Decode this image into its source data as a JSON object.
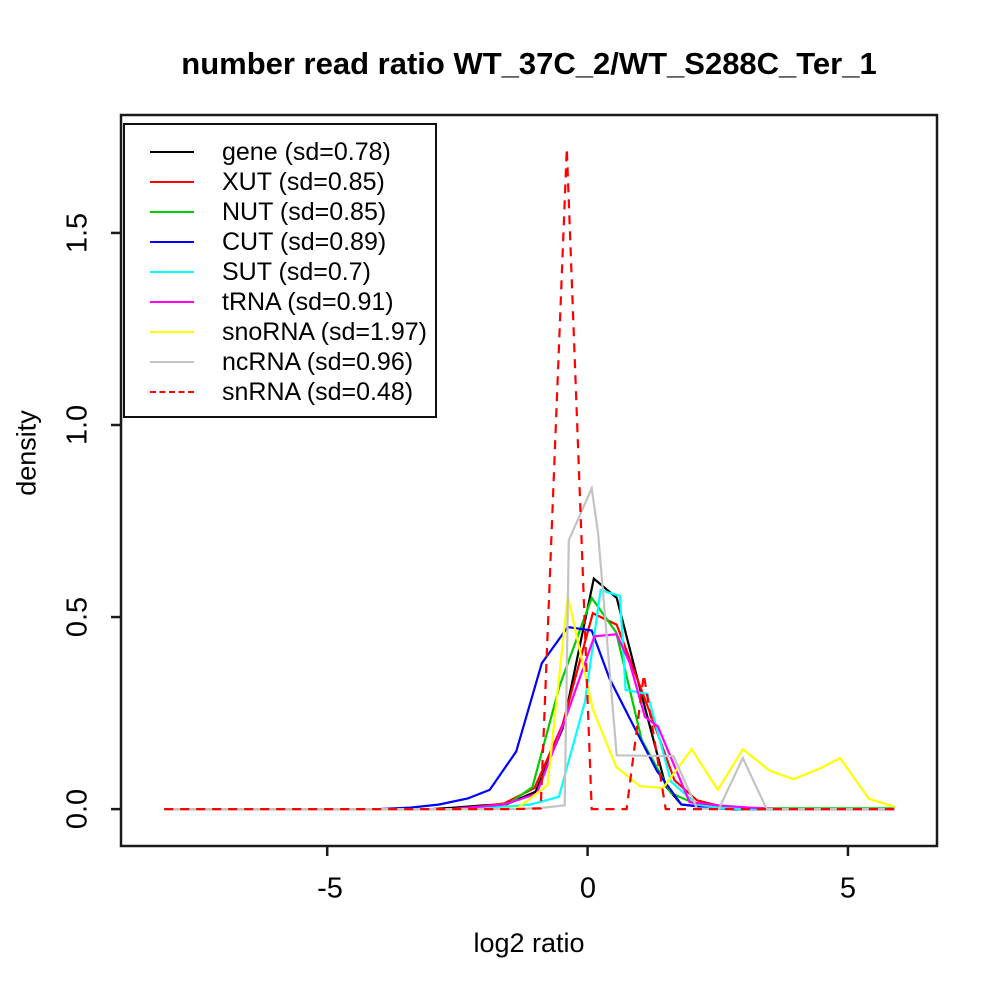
{
  "chart_data": {
    "type": "line",
    "title": "number read ratio WT_37C_2/WT_S288C_Ter_1",
    "xlabel": "log2 ratio",
    "ylabel": "density",
    "xlim": [
      -8.96,
      6.71
    ],
    "ylim": [
      -0.096,
      1.807
    ],
    "grid": false,
    "legend_position": "top-left",
    "x_ticks": [
      -5,
      0,
      5
    ],
    "x_tick_labels": [
      "-5",
      "0",
      "5"
    ],
    "y_ticks": [
      0,
      0.5,
      1,
      1.5
    ],
    "y_tick_labels": [
      "0.0",
      "0.5",
      "1.0",
      "1.5"
    ],
    "frame_color": "#1a1a1a",
    "series": [
      {
        "name": "gene",
        "sd": 0.78,
        "legend_label": "gene (sd=0.78)",
        "color": "#000000",
        "linetype": "solid",
        "points": [
          [
            -8.13,
            0
          ],
          [
            -3.0,
            0
          ],
          [
            -2.55,
            0.004
          ],
          [
            -2.0,
            0.01
          ],
          [
            -1.55,
            0.013
          ],
          [
            -1.0,
            0.045
          ],
          [
            -0.48,
            0.21
          ],
          [
            0.12,
            0.6
          ],
          [
            0.56,
            0.55
          ],
          [
            1.05,
            0.29
          ],
          [
            1.5,
            0.06
          ],
          [
            1.8,
            0.012
          ],
          [
            2.3,
            0.005
          ],
          [
            2.8,
            0
          ],
          [
            5.9,
            0
          ]
        ]
      },
      {
        "name": "XUT",
        "sd": 0.85,
        "legend_label": "XUT (sd=0.85)",
        "color": "#ff0000",
        "linetype": "solid",
        "points": [
          [
            -8.13,
            0
          ],
          [
            -2.6,
            0
          ],
          [
            -2.0,
            0.008
          ],
          [
            -1.6,
            0.015
          ],
          [
            -1.02,
            0.055
          ],
          [
            -0.48,
            0.22
          ],
          [
            0.1,
            0.51
          ],
          [
            0.56,
            0.48
          ],
          [
            1.23,
            0.24
          ],
          [
            1.67,
            0.075
          ],
          [
            2.1,
            0.023
          ],
          [
            2.6,
            0.006
          ],
          [
            3.1,
            0
          ],
          [
            5.9,
            0
          ]
        ]
      },
      {
        "name": "NUT",
        "sd": 0.85,
        "legend_label": "NUT (sd=0.85)",
        "color": "#00cd00",
        "linetype": "solid",
        "points": [
          [
            -8.13,
            0
          ],
          [
            -2.5,
            0
          ],
          [
            -2.0,
            0.005
          ],
          [
            -1.5,
            0.016
          ],
          [
            -1.06,
            0.057
          ],
          [
            -0.54,
            0.32
          ],
          [
            0.08,
            0.55
          ],
          [
            0.55,
            0.46
          ],
          [
            1.04,
            0.18
          ],
          [
            1.6,
            0.042
          ],
          [
            2.1,
            0.012
          ],
          [
            2.6,
            0.004
          ],
          [
            3.1,
            0.002
          ],
          [
            5.9,
            0.002
          ]
        ]
      },
      {
        "name": "CUT",
        "sd": 0.89,
        "legend_label": "CUT (sd=0.89)",
        "color": "#0000ff",
        "linetype": "solid",
        "points": [
          [
            -8.13,
            0
          ],
          [
            -4.0,
            0
          ],
          [
            -3.4,
            0.004
          ],
          [
            -2.85,
            0.012
          ],
          [
            -2.3,
            0.028
          ],
          [
            -1.88,
            0.05
          ],
          [
            -1.37,
            0.15
          ],
          [
            -0.88,
            0.38
          ],
          [
            -0.38,
            0.474
          ],
          [
            0.08,
            0.465
          ],
          [
            0.42,
            0.34
          ],
          [
            0.87,
            0.22
          ],
          [
            1.33,
            0.1
          ],
          [
            1.8,
            0.012
          ],
          [
            2.3,
            0.004
          ],
          [
            2.8,
            0
          ],
          [
            5.9,
            0
          ]
        ]
      },
      {
        "name": "SUT",
        "sd": 0.7,
        "legend_label": "SUT (sd=0.7)",
        "color": "#00ffff",
        "linetype": "solid",
        "points": [
          [
            -8.13,
            0
          ],
          [
            -2.6,
            0
          ],
          [
            -2.1,
            0.003
          ],
          [
            -1.6,
            0.006
          ],
          [
            -1.1,
            0.012
          ],
          [
            -0.55,
            0.032
          ],
          [
            -0.05,
            0.28
          ],
          [
            0.25,
            0.57
          ],
          [
            0.62,
            0.555
          ],
          [
            0.73,
            0.31
          ],
          [
            1.15,
            0.3
          ],
          [
            1.6,
            0.072
          ],
          [
            2.1,
            0.012
          ],
          [
            2.55,
            0.003
          ],
          [
            3.0,
            0
          ],
          [
            5.9,
            0
          ]
        ]
      },
      {
        "name": "tRNA",
        "sd": 0.91,
        "legend_label": "tRNA (sd=0.91)",
        "color": "#ff00ff",
        "linetype": "solid",
        "points": [
          [
            -8.13,
            0
          ],
          [
            -2.6,
            0
          ],
          [
            -2.1,
            0.006
          ],
          [
            -1.6,
            0.012
          ],
          [
            -0.98,
            0.04
          ],
          [
            -0.44,
            0.23
          ],
          [
            0.13,
            0.45
          ],
          [
            0.56,
            0.455
          ],
          [
            0.81,
            0.38
          ],
          [
            1.1,
            0.24
          ],
          [
            1.35,
            0.215
          ],
          [
            1.96,
            0.018
          ],
          [
            2.5,
            0.01
          ],
          [
            3.1,
            0.004
          ],
          [
            3.7,
            0
          ],
          [
            5.9,
            0
          ]
        ]
      },
      {
        "name": "snoRNA",
        "sd": 1.97,
        "legend_label": "snoRNA (sd=1.97)",
        "color": "#ffff00",
        "linetype": "solid",
        "points": [
          [
            -8.13,
            0
          ],
          [
            -1.8,
            0
          ],
          [
            -1.35,
            0.002
          ],
          [
            -0.77,
            0.062
          ],
          [
            -0.38,
            0.555
          ],
          [
            0.1,
            0.26
          ],
          [
            0.55,
            0.11
          ],
          [
            1.0,
            0.06
          ],
          [
            1.45,
            0.055
          ],
          [
            2.0,
            0.156
          ],
          [
            2.5,
            0.05
          ],
          [
            2.98,
            0.156
          ],
          [
            3.5,
            0.1
          ],
          [
            3.95,
            0.078
          ],
          [
            4.45,
            0.105
          ],
          [
            4.85,
            0.133
          ],
          [
            5.4,
            0.027
          ],
          [
            5.9,
            0.006
          ]
        ]
      },
      {
        "name": "ncRNA",
        "sd": 0.96,
        "legend_label": "ncRNA (sd=0.96)",
        "color": "#c3c3c3",
        "linetype": "solid",
        "points": [
          [
            -8.13,
            0
          ],
          [
            -1.4,
            0
          ],
          [
            -0.9,
            0.003
          ],
          [
            -0.44,
            0.01
          ],
          [
            -0.36,
            0.7
          ],
          [
            0.08,
            0.835
          ],
          [
            0.2,
            0.72
          ],
          [
            0.56,
            0.14
          ],
          [
            1.65,
            0.138
          ],
          [
            2.1,
            0.002
          ],
          [
            2.52,
            0
          ],
          [
            2.98,
            0.133
          ],
          [
            3.44,
            0
          ],
          [
            4.0,
            0
          ],
          [
            5.9,
            0
          ]
        ]
      },
      {
        "name": "snRNA",
        "sd": 0.48,
        "legend_label": "snRNA (sd=0.48)",
        "color": "#ff0000",
        "linetype": "dashed",
        "points": [
          [
            -8.13,
            0
          ],
          [
            -1.4,
            0
          ],
          [
            -0.9,
            0.002
          ],
          [
            -0.4,
            1.72
          ],
          [
            0.08,
            0
          ],
          [
            0.75,
            0
          ],
          [
            1.08,
            0.35
          ],
          [
            1.5,
            0
          ],
          [
            5.9,
            0
          ]
        ]
      }
    ]
  }
}
